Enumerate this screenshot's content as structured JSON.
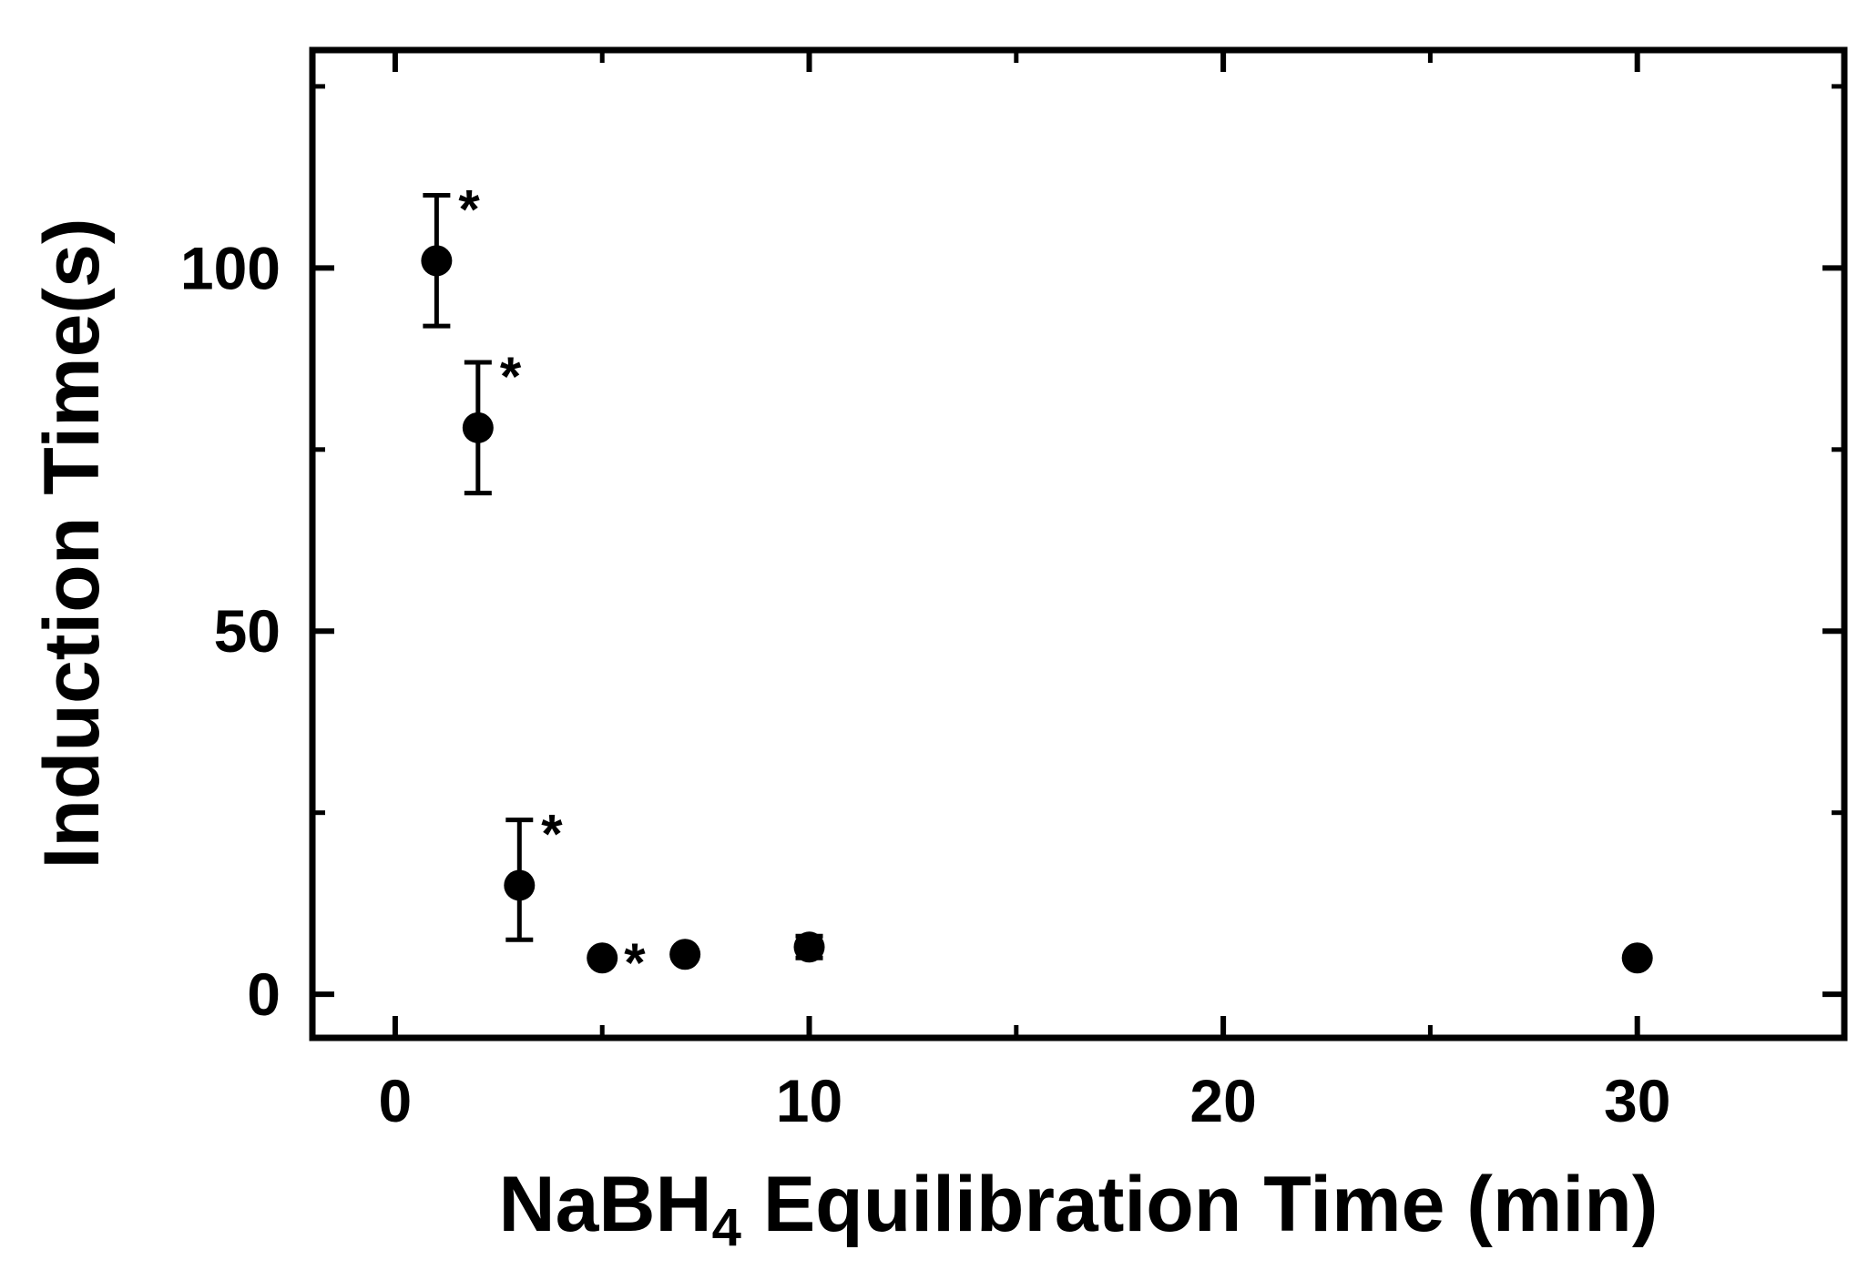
{
  "chart_data": {
    "type": "scatter",
    "title": "",
    "xlabel": "NaBH",
    "xlabel_subscript": "4",
    "xlabel_suffix": " Equilibration Time (min)",
    "ylabel": "Induction Time(s)",
    "xlim": [
      -2,
      35
    ],
    "ylim": [
      -6,
      130
    ],
    "x_ticks": [
      0,
      10,
      20,
      30
    ],
    "x_minor_ticks": [
      5,
      15,
      25
    ],
    "y_ticks": [
      0,
      50,
      100
    ],
    "y_minor_ticks": [
      25,
      75,
      125
    ],
    "grid": false,
    "legend": "none",
    "marker_color": "#000000",
    "significance_marker": "*",
    "series": [
      {
        "points": [
          {
            "x": 1,
            "y": 101,
            "yerr_low": 92,
            "yerr_high": 110,
            "significant": true
          },
          {
            "x": 2,
            "y": 78,
            "yerr_low": 69,
            "yerr_high": 87,
            "significant": true
          },
          {
            "x": 3,
            "y": 15,
            "yerr_low": 7.5,
            "yerr_high": 24,
            "significant": true
          },
          {
            "x": 5,
            "y": 5,
            "significant": true
          },
          {
            "x": 7,
            "y": 5.5,
            "significant": false
          },
          {
            "x": 10,
            "y": 6.5,
            "yerr_low": 5,
            "yerr_high": 8,
            "significant": false
          },
          {
            "x": 30,
            "y": 5,
            "significant": false
          }
        ]
      }
    ]
  }
}
